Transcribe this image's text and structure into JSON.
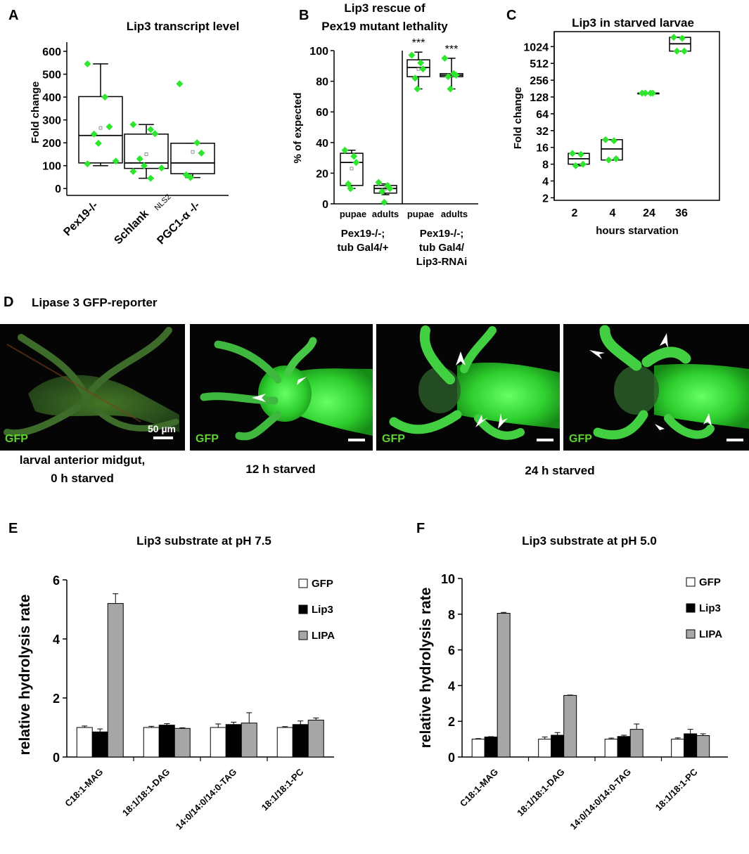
{
  "panel_letters": {
    "A": "A",
    "B": "B",
    "C": "C",
    "D": "D",
    "E": "E",
    "F": "F"
  },
  "colors": {
    "diamond": "#2ee62e",
    "gfp_label": "#5dd330",
    "micro_bg": "#000000",
    "micro_tissue": "#33dd33",
    "bar_gfp": "#ffffff",
    "bar_lip3": "#000000",
    "bar_lipa": "#a6a6a6"
  },
  "chart_data": [
    {
      "id": "A",
      "type": "box",
      "title": "Lip3 transcript level",
      "ylabel": "Fold change",
      "ylim": [
        -30,
        640
      ],
      "yticks": [
        0,
        100,
        200,
        300,
        400,
        500,
        600
      ],
      "categories": [
        "Pex19-/-",
        "Schlank",
        "PGC1-α -/-"
      ],
      "category_superscript": {
        "1": "NLS2"
      },
      "boxes": [
        {
          "min": 100,
          "q1": 112,
          "median": 232,
          "q3": 402,
          "max": 545,
          "mean": 265
        },
        {
          "min": 45,
          "q1": 88,
          "median": 112,
          "q3": 238,
          "max": 280,
          "mean": 150
        },
        {
          "min": 48,
          "q1": 65,
          "median": 112,
          "q3": 198,
          "max": 198,
          "mean": 160
        }
      ],
      "points": [
        [
          545,
          400,
          270,
          238,
          198,
          120,
          108
        ],
        [
          280,
          258,
          240,
          130,
          100,
          90,
          75,
          45
        ],
        [
          458,
          200,
          155,
          60,
          48
        ]
      ]
    },
    {
      "id": "B",
      "type": "box",
      "title": "Lip3 rescue of Pex19 mutant lethality",
      "title_lines": [
        "Lip3 rescue of",
        "Pex19 mutant lethality"
      ],
      "ylabel": "% of expected",
      "ylim": [
        0,
        100
      ],
      "yticks": [
        0,
        20,
        40,
        60,
        80,
        100
      ],
      "categories": [
        "pupae",
        "adults",
        "pupae",
        "adults"
      ],
      "groups": [
        {
          "lines": [
            "Pex19-/-;",
            "tub Gal4/+"
          ]
        },
        {
          "lines": [
            "Pex19-/-;",
            "tub Gal4/",
            "Lip3-RNAi"
          ]
        }
      ],
      "significance": [
        "",
        "",
        "***",
        "***"
      ],
      "boxes": [
        {
          "min": 10,
          "q1": 12,
          "median": 27,
          "q3": 33,
          "max": 35,
          "mean": 23
        },
        {
          "min": 6,
          "q1": 7,
          "median": 10,
          "q3": 12,
          "max": 13,
          "mean": 10
        },
        {
          "min": 75,
          "q1": 83,
          "median": 89,
          "q3": 94,
          "max": 99,
          "mean": 88
        },
        {
          "min": 75,
          "q1": 83,
          "median": 84,
          "q3": 85,
          "max": 95,
          "mean": 84
        }
      ],
      "points": [
        [
          35,
          31,
          27,
          13,
          10
        ],
        [
          14,
          12,
          10,
          8,
          1
        ],
        [
          97,
          92,
          88,
          82,
          75
        ],
        [
          95,
          85,
          84,
          83,
          75
        ]
      ]
    },
    {
      "id": "C",
      "type": "box",
      "yscale": "log2",
      "title": "Lip3 in starved larvae",
      "ylabel": "Fold change",
      "xlabel": "hours starvation",
      "ylim": [
        1.8,
        1900
      ],
      "yticks": [
        2,
        4,
        8,
        16,
        32,
        64,
        128,
        256,
        512,
        1024
      ],
      "categories": [
        "2",
        "4",
        "24",
        "36"
      ],
      "boxes": [
        {
          "min": 7.5,
          "q1": 8,
          "median": 10,
          "q3": 12.5,
          "max": 12.5
        },
        {
          "min": 9.5,
          "q1": 9.5,
          "median": 15,
          "q3": 22,
          "max": 22
        },
        {
          "min": 150,
          "q1": 150,
          "median": 150,
          "q3": 150,
          "max": 150
        },
        {
          "min": 850,
          "q1": 850,
          "median": 1150,
          "q3": 1500,
          "max": 1500
        }
      ],
      "points": [
        [
          12.5,
          12,
          8,
          7.5
        ],
        [
          22,
          21,
          10,
          9.5
        ],
        [
          150,
          150,
          150,
          150
        ],
        [
          1500,
          1450,
          850,
          850
        ]
      ]
    },
    {
      "id": "E",
      "type": "bar",
      "title": "Lip3 substrate at pH 7.5",
      "ylabel": "relative hydrolysis rate",
      "ylim": [
        0,
        6
      ],
      "yticks": [
        0,
        2,
        4,
        6
      ],
      "categories": [
        "C18:1-MAG",
        "18:1/18:1-DAG",
        "14:0/14:0/14:0-TAG",
        "18:1/18:1-PC"
      ],
      "series": [
        {
          "name": "GFP",
          "values": [
            1.0,
            1.0,
            1.0,
            1.0
          ],
          "errors": [
            0.05,
            0.04,
            0.12,
            0.03
          ]
        },
        {
          "name": "Lip3",
          "values": [
            0.85,
            1.08,
            1.1,
            1.1
          ],
          "errors": [
            0.1,
            0.05,
            0.08,
            0.12
          ]
        },
        {
          "name": "LIPA",
          "values": [
            5.2,
            0.97,
            1.15,
            1.25
          ],
          "errors": [
            0.33,
            0.02,
            0.35,
            0.07
          ]
        }
      ]
    },
    {
      "id": "F",
      "type": "bar",
      "title": "Lip3 substrate at pH 5.0",
      "ylabel": "relative hydrolysis rate",
      "ylim": [
        0,
        10
      ],
      "yticks": [
        0,
        2,
        4,
        6,
        8,
        10
      ],
      "categories": [
        "C18:1-MAG",
        "18:1/18:1-DAG",
        "14:0/14:0/14:0-TAG",
        "18:1/18:1-PC"
      ],
      "series": [
        {
          "name": "GFP",
          "values": [
            1.0,
            1.0,
            1.0,
            1.0
          ],
          "errors": [
            0.03,
            0.12,
            0.06,
            0.07
          ]
        },
        {
          "name": "Lip3",
          "values": [
            1.12,
            1.22,
            1.15,
            1.3
          ],
          "errors": [
            0.02,
            0.15,
            0.07,
            0.25
          ]
        },
        {
          "name": "LIPA",
          "values": [
            8.05,
            3.45,
            1.55,
            1.2
          ],
          "errors": [
            0.05,
            0.02,
            0.3,
            0.1
          ]
        }
      ]
    }
  ],
  "panel_D": {
    "title": "Lipase 3 GFP-reporter",
    "scale_bar_label": "50 µm",
    "channel_label": "GFP",
    "captions": {
      "c1_line1": "larval anterior midgut,",
      "c1_line2": "0 h starved",
      "c2": "12 h starved",
      "c3": "24 h starved"
    }
  }
}
